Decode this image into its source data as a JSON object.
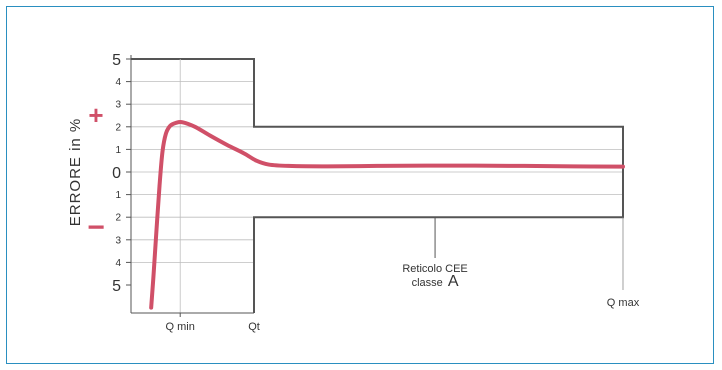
{
  "chart_data": {
    "type": "line",
    "title": "",
    "ylabel": "ERRORE in %",
    "xlabel": "",
    "ylim": [
      -6,
      5
    ],
    "yticks": [
      {
        "value": 5,
        "label": "5",
        "size": "large"
      },
      {
        "value": 4,
        "label": "4",
        "size": "small"
      },
      {
        "value": 3,
        "label": "3",
        "size": "small"
      },
      {
        "value": 2,
        "label": "2",
        "size": "small"
      },
      {
        "value": 1,
        "label": "1",
        "size": "small"
      },
      {
        "value": 0,
        "label": "0",
        "size": "large"
      },
      {
        "value": -1,
        "label": "1",
        "size": "small"
      },
      {
        "value": -2,
        "label": "2",
        "size": "small"
      },
      {
        "value": -3,
        "label": "3",
        "size": "small"
      },
      {
        "value": -4,
        "label": "4",
        "size": "small"
      },
      {
        "value": -5,
        "label": "5",
        "size": "large"
      }
    ],
    "plus_sign": "+",
    "minus_sign": "−",
    "x_markers": [
      {
        "key": "qmin",
        "label": "Q min",
        "x": 0.1
      },
      {
        "key": "qt",
        "label": "Qt",
        "x": 0.25
      },
      {
        "key": "qmax",
        "label": "Q max",
        "x": 1.0
      }
    ],
    "tolerance_band": [
      {
        "x_from": 0.0,
        "x_to": 0.25,
        "lower": -5,
        "upper": 5
      },
      {
        "x_from": 0.25,
        "x_to": 1.0,
        "lower": -2,
        "upper": 2
      }
    ],
    "annotation": {
      "line1": "Reticolo CEE",
      "line2": "classe",
      "line2_emphasis": "A",
      "x": 0.618
    },
    "series": [
      {
        "color": "#d05068",
        "points": [
          [
            0.041,
            -6.0
          ],
          [
            0.046,
            -4.5
          ],
          [
            0.052,
            -2.5
          ],
          [
            0.058,
            -0.6
          ],
          [
            0.064,
            0.9
          ],
          [
            0.071,
            1.7
          ],
          [
            0.08,
            2.05
          ],
          [
            0.092,
            2.18
          ],
          [
            0.105,
            2.2
          ],
          [
            0.13,
            2.0
          ],
          [
            0.16,
            1.62
          ],
          [
            0.195,
            1.2
          ],
          [
            0.23,
            0.82
          ],
          [
            0.255,
            0.5
          ],
          [
            0.28,
            0.33
          ],
          [
            0.32,
            0.27
          ],
          [
            0.4,
            0.25
          ],
          [
            0.5,
            0.27
          ],
          [
            0.6,
            0.28
          ],
          [
            0.7,
            0.28
          ],
          [
            0.8,
            0.27
          ],
          [
            0.9,
            0.25
          ],
          [
            1.0,
            0.24
          ]
        ]
      }
    ]
  }
}
